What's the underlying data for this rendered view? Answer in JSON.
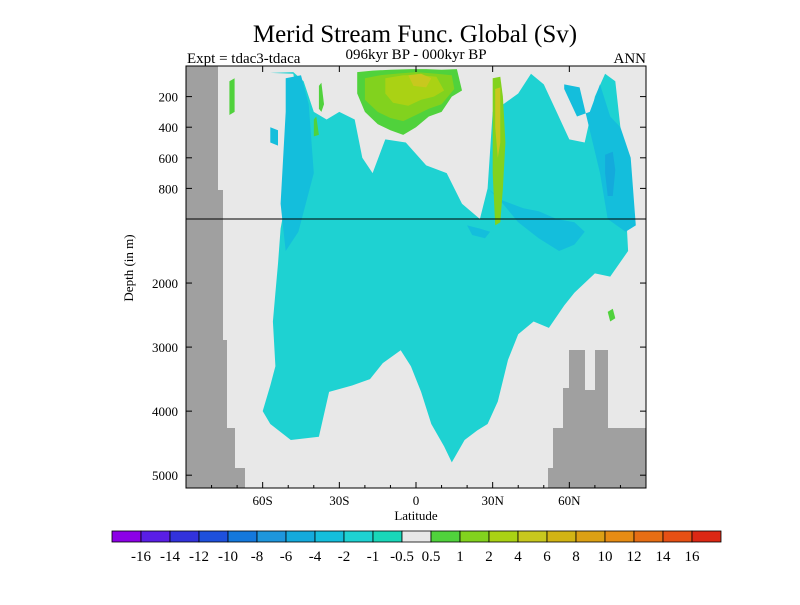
{
  "chart_data": {
    "type": "heatmap",
    "title": "Merid Stream Func. Global (Sv)",
    "subtitle_left": "Expt = tdac3-tdaca",
    "subtitle_center": "096kyr BP - 000kyr BP",
    "subtitle_right": "ANN",
    "xlabel": "Latitude",
    "ylabel": "Depth (in m)",
    "x_ticks": [
      {
        "value": -60,
        "label": "60S"
      },
      {
        "value": -30,
        "label": "30S"
      },
      {
        "value": 0,
        "label": "0"
      },
      {
        "value": 30,
        "label": "30N"
      },
      {
        "value": 60,
        "label": "60N"
      }
    ],
    "x_range": [
      -90,
      90
    ],
    "upper_depth_ticks": [
      {
        "value": 200,
        "label": "200"
      },
      {
        "value": 400,
        "label": "400"
      },
      {
        "value": 600,
        "label": "600"
      },
      {
        "value": 800,
        "label": "800"
      }
    ],
    "lower_depth_ticks": [
      {
        "value": 2000,
        "label": "2000"
      },
      {
        "value": 3000,
        "label": "3000"
      },
      {
        "value": 4000,
        "label": "4000"
      },
      {
        "value": 5000,
        "label": "5000"
      }
    ],
    "upper_depth_range": [
      0,
      1000
    ],
    "lower_depth_range": [
      1000,
      5200
    ],
    "colorbar": {
      "labels": [
        "-16",
        "-14",
        "-12",
        "-10",
        "-8",
        "-6",
        "-4",
        "-2",
        "-1",
        "-0.5",
        "0.5",
        "1",
        "2",
        "4",
        "6",
        "8",
        "10",
        "12",
        "14",
        "16"
      ],
      "colors": [
        "#8c00e6",
        "#5a1ee6",
        "#3232dc",
        "#1e50dc",
        "#1478dc",
        "#1e96dc",
        "#14aadc",
        "#14bedc",
        "#1ed2d2",
        "#19d7b9",
        "#e8e8e8",
        "#50d23c",
        "#82d21e",
        "#aad214",
        "#c8c81e",
        "#d2b414",
        "#dca014",
        "#e68c14",
        "#e66e14",
        "#e65014",
        "#dc2814"
      ]
    },
    "land_color": "#a0a0a0",
    "background_color": "#e8e8e8",
    "regions": [
      {
        "level": "-1",
        "poly": [
          [
            -57,
            45
          ],
          [
            -48,
            50
          ],
          [
            -47,
            150
          ],
          [
            -48,
            300
          ],
          [
            -49,
            700
          ],
          [
            -53,
            1150
          ],
          [
            -54,
            1700
          ],
          [
            -55,
            2150
          ],
          [
            -56,
            2600
          ],
          [
            -55,
            3300
          ],
          [
            -57,
            3600
          ],
          [
            -60,
            4000
          ],
          [
            -57,
            4200
          ],
          [
            -49,
            4450
          ],
          [
            -38,
            4400
          ],
          [
            -34,
            3700
          ],
          [
            -25,
            3600
          ],
          [
            -18,
            3500
          ],
          [
            -13,
            3250
          ],
          [
            -6,
            3050
          ],
          [
            -2,
            3300
          ],
          [
            2,
            3700
          ],
          [
            6,
            4200
          ],
          [
            11,
            4550
          ],
          [
            14,
            4800
          ],
          [
            19,
            4450
          ],
          [
            24,
            4300
          ],
          [
            28,
            4200
          ],
          [
            32,
            3850
          ],
          [
            36,
            3200
          ],
          [
            40,
            2800
          ],
          [
            46,
            2600
          ],
          [
            52,
            2700
          ],
          [
            58,
            2350
          ],
          [
            62,
            2150
          ],
          [
            66,
            2000
          ],
          [
            70,
            1850
          ],
          [
            76,
            1900
          ],
          [
            83,
            1500
          ],
          [
            82,
            900
          ],
          [
            80,
            400
          ],
          [
            78,
            100
          ],
          [
            74,
            50
          ],
          [
            70,
            200
          ],
          [
            66,
            500
          ],
          [
            60,
            480
          ],
          [
            55,
            300
          ],
          [
            50,
            120
          ],
          [
            45,
            50
          ],
          [
            40,
            180
          ],
          [
            30,
            300
          ],
          [
            28,
            800
          ],
          [
            25,
            1000
          ],
          [
            18,
            900
          ],
          [
            12,
            700
          ],
          [
            4,
            650
          ],
          [
            -4,
            500
          ],
          [
            -12,
            480
          ],
          [
            -17,
            700
          ],
          [
            -21,
            600
          ],
          [
            -24,
            350
          ],
          [
            -30,
            300
          ],
          [
            -35,
            350
          ],
          [
            -40,
            300
          ],
          [
            -44,
            100
          ],
          [
            -48,
            40
          ]
        ]
      },
      {
        "level": "-2",
        "poly": [
          [
            -51,
            80
          ],
          [
            -45,
            60
          ],
          [
            -42,
            250
          ],
          [
            -40,
            700
          ],
          [
            -46,
            1200
          ],
          [
            -51,
            1500
          ],
          [
            -53,
            900
          ],
          [
            -51,
            300
          ]
        ]
      },
      {
        "level": "-2",
        "poly": [
          [
            58,
            120
          ],
          [
            64,
            140
          ],
          [
            67,
            350
          ],
          [
            72,
            700
          ],
          [
            75,
            1000
          ],
          [
            82,
            1200
          ],
          [
            86,
            1100
          ],
          [
            84,
            600
          ],
          [
            80,
            400
          ],
          [
            76,
            330
          ],
          [
            72,
            120
          ],
          [
            68,
            300
          ],
          [
            63,
            330
          ],
          [
            58,
            150
          ]
        ]
      },
      {
        "level": "-2",
        "poly": [
          [
            28,
            800
          ],
          [
            34,
            900
          ],
          [
            40,
            1050
          ],
          [
            48,
            1300
          ],
          [
            56,
            1500
          ],
          [
            62,
            1400
          ],
          [
            66,
            1200
          ],
          [
            62,
            1050
          ],
          [
            55,
            1000
          ],
          [
            48,
            950
          ],
          [
            42,
            930
          ],
          [
            34,
            880
          ]
        ]
      },
      {
        "level": "-2",
        "poly": [
          [
            20,
            1100
          ],
          [
            25,
            1150
          ],
          [
            29,
            1200
          ],
          [
            27,
            1300
          ],
          [
            22,
            1250
          ]
        ]
      },
      {
        "level": "-2",
        "poly": [
          [
            -57,
            400
          ],
          [
            -54,
            420
          ],
          [
            -54,
            520
          ],
          [
            -57,
            500
          ]
        ]
      },
      {
        "level": "-4",
        "poly": [
          [
            74,
            580
          ],
          [
            77,
            560
          ],
          [
            78,
            680
          ],
          [
            77,
            850
          ],
          [
            75,
            850
          ],
          [
            74,
            700
          ]
        ]
      },
      {
        "level": "0.5",
        "poly": [
          [
            -23,
            40
          ],
          [
            -17,
            30
          ],
          [
            -10,
            25
          ],
          [
            -2,
            20
          ],
          [
            4,
            20
          ],
          [
            10,
            25
          ],
          [
            16,
            20
          ],
          [
            18,
            160
          ],
          [
            14,
            200
          ],
          [
            10,
            300
          ],
          [
            5,
            330
          ],
          [
            0,
            400
          ],
          [
            -5,
            450
          ],
          [
            -10,
            420
          ],
          [
            -15,
            380
          ],
          [
            -20,
            300
          ],
          [
            -23,
            180
          ]
        ]
      },
      {
        "level": "0.5",
        "poly": [
          [
            -73,
            100
          ],
          [
            -71,
            80
          ],
          [
            -71,
            300
          ],
          [
            -73,
            320
          ]
        ]
      },
      {
        "level": "0.5",
        "poly": [
          [
            -38,
            130
          ],
          [
            -37,
            110
          ],
          [
            -36,
            250
          ],
          [
            -37,
            300
          ],
          [
            -38,
            280
          ]
        ]
      },
      {
        "level": "0.5",
        "poly": [
          [
            75,
            2450
          ],
          [
            77,
            2400
          ],
          [
            78,
            2550
          ],
          [
            76,
            2600
          ]
        ]
      },
      {
        "level": "0.5",
        "poly": [
          [
            -40,
            350
          ],
          [
            -39,
            330
          ],
          [
            -38,
            450
          ],
          [
            -40,
            460
          ]
        ]
      },
      {
        "level": "1",
        "poly": [
          [
            -20,
            80
          ],
          [
            -14,
            60
          ],
          [
            -8,
            50
          ],
          [
            0,
            40
          ],
          [
            8,
            50
          ],
          [
            14,
            60
          ],
          [
            15,
            150
          ],
          [
            10,
            250
          ],
          [
            5,
            280
          ],
          [
            0,
            320
          ],
          [
            -5,
            360
          ],
          [
            -10,
            340
          ],
          [
            -15,
            300
          ],
          [
            -20,
            220
          ]
        ]
      },
      {
        "level": "2",
        "poly": [
          [
            -12,
            80
          ],
          [
            -5,
            60
          ],
          [
            2,
            60
          ],
          [
            8,
            70
          ],
          [
            11,
            160
          ],
          [
            7,
            200
          ],
          [
            2,
            220
          ],
          [
            -3,
            260
          ],
          [
            -9,
            240
          ],
          [
            -12,
            180
          ]
        ]
      },
      {
        "level": "4",
        "poly": [
          [
            -3,
            60
          ],
          [
            2,
            50
          ],
          [
            6,
            80
          ],
          [
            4,
            140
          ],
          [
            -1,
            130
          ]
        ]
      },
      {
        "level": "1",
        "poly": [
          [
            30,
            80
          ],
          [
            33,
            70
          ],
          [
            34,
            200
          ],
          [
            35,
            500
          ],
          [
            34,
            800
          ],
          [
            33,
            1050
          ],
          [
            31,
            1100
          ],
          [
            30,
            700
          ],
          [
            30,
            300
          ]
        ]
      },
      {
        "level": "4",
        "poly": [
          [
            31,
            150
          ],
          [
            33,
            140
          ],
          [
            33,
            500
          ],
          [
            32,
            600
          ],
          [
            31,
            400
          ]
        ]
      }
    ]
  }
}
